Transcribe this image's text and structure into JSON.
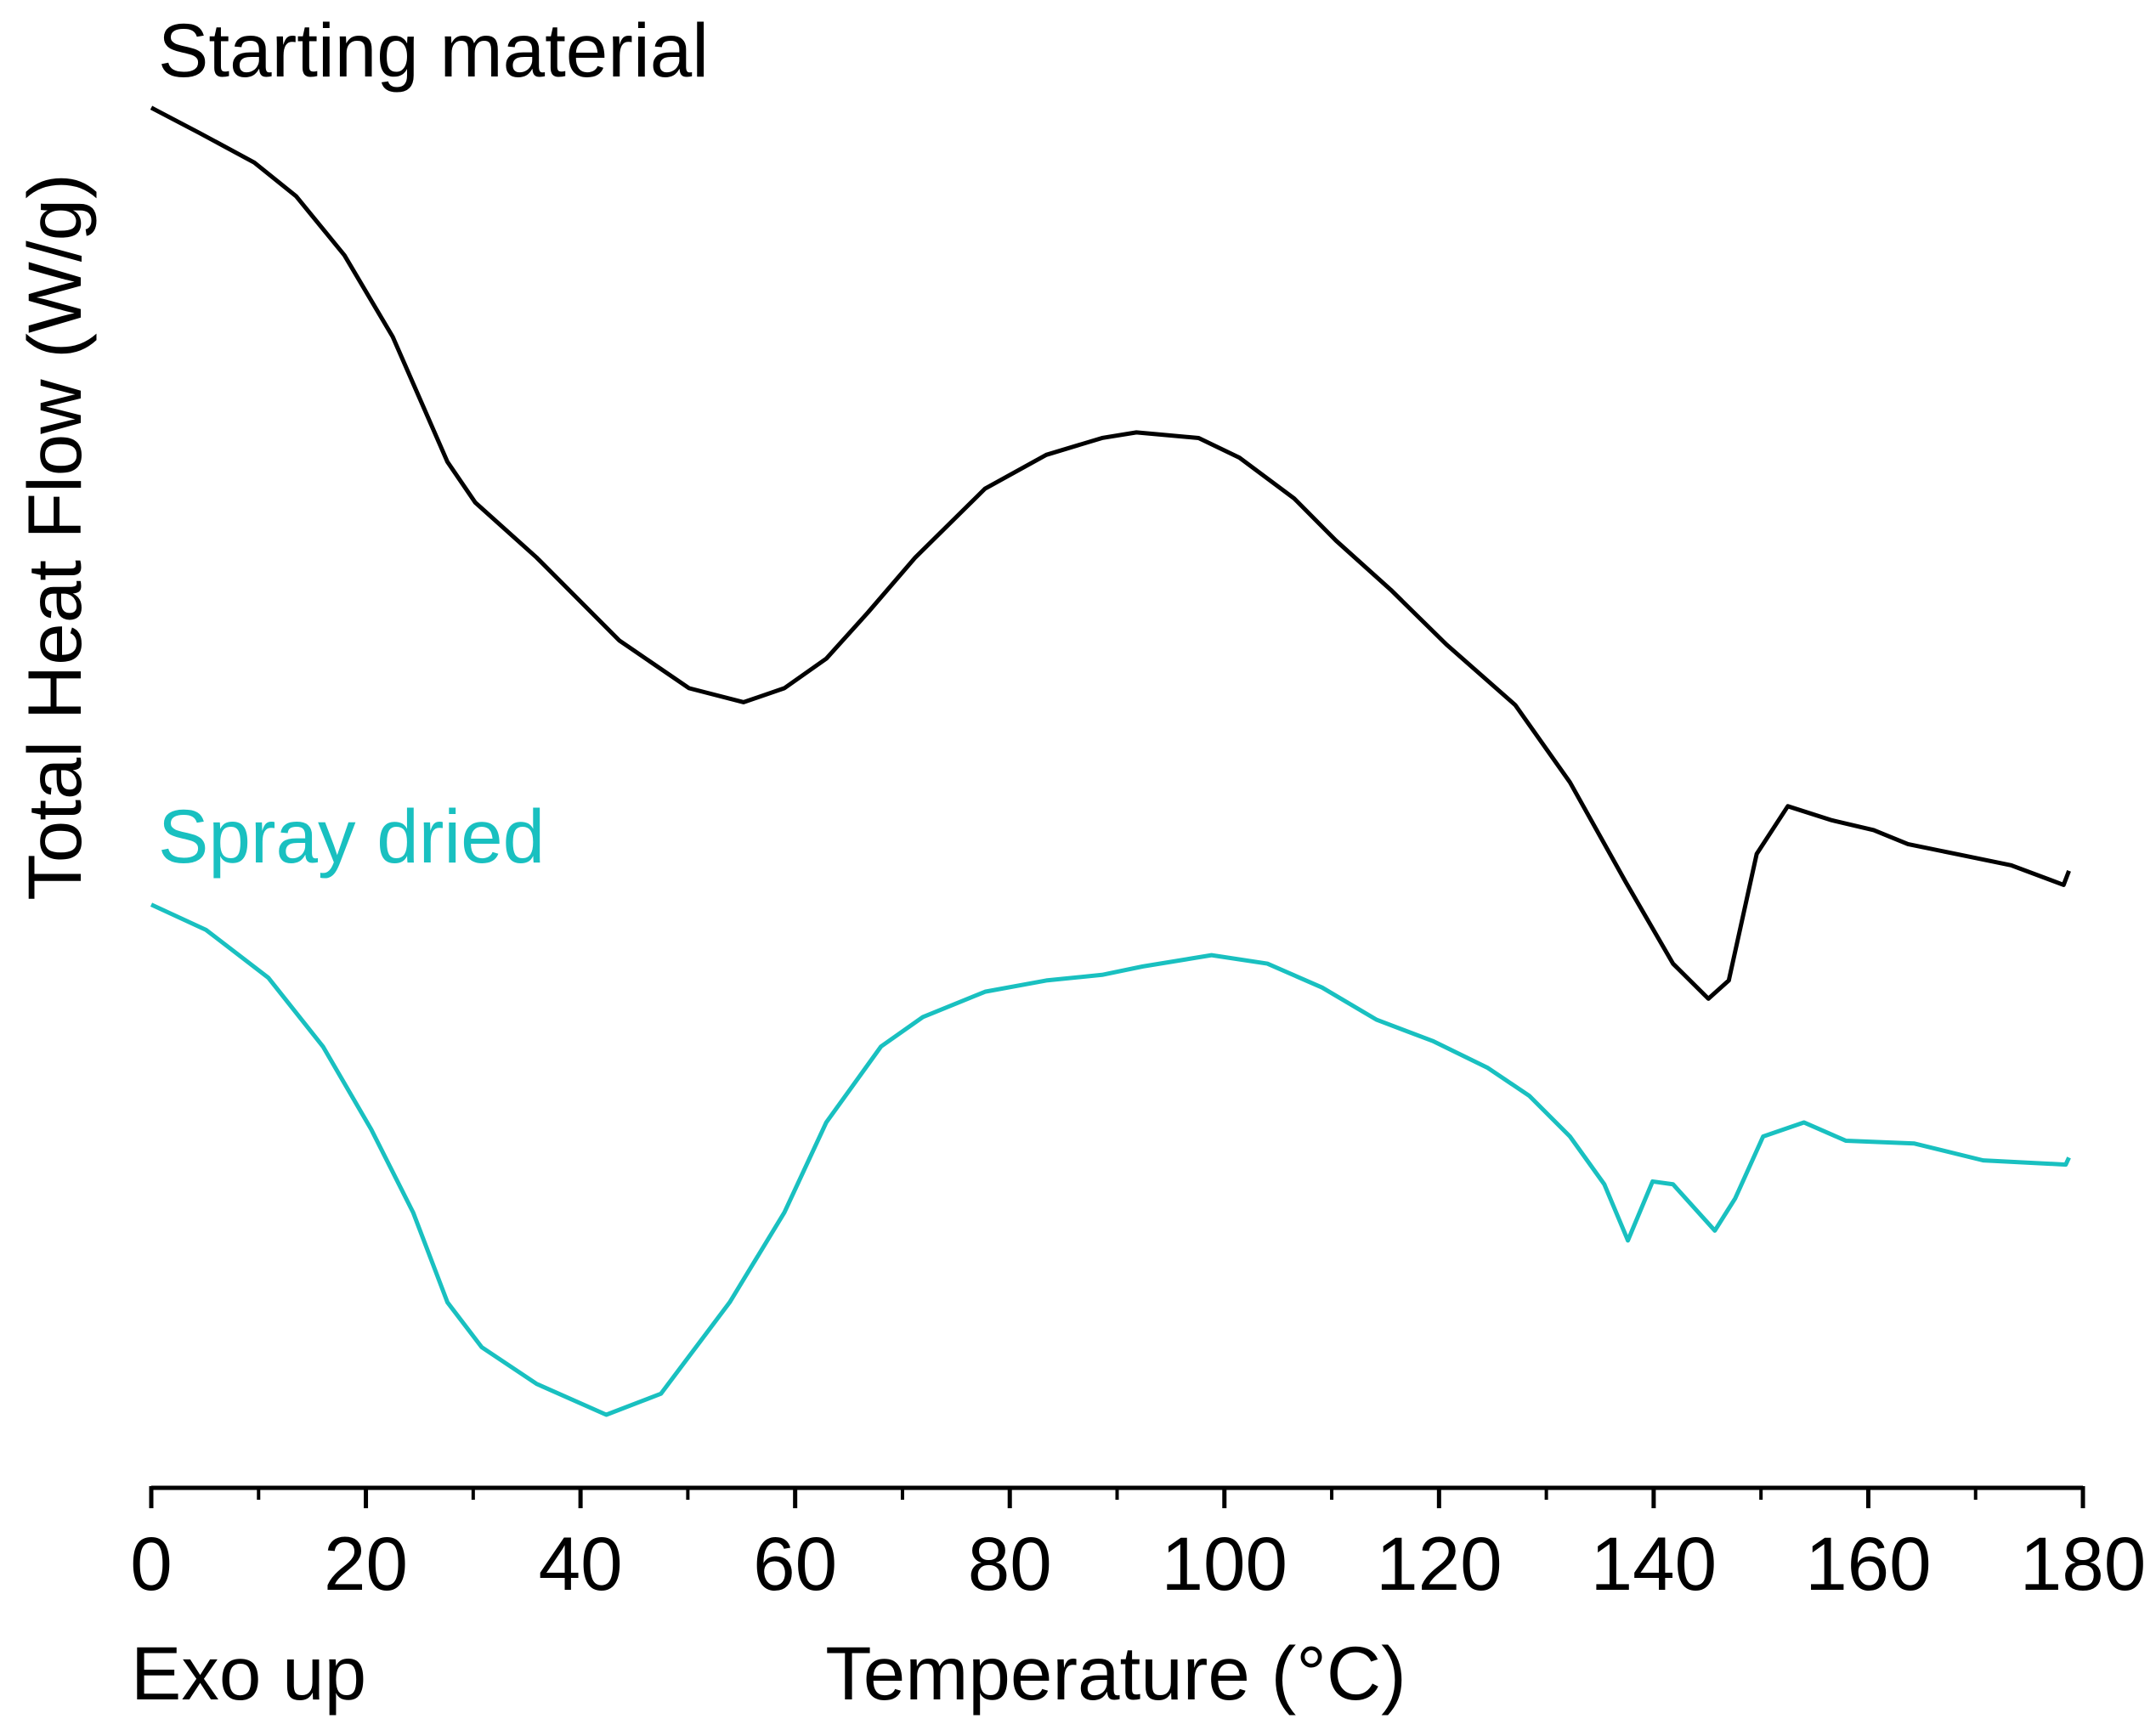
{
  "chart_data": {
    "type": "line",
    "x_label": "Temperature (°C)",
    "y_label": "Total Heat Flow (W/g)",
    "annotation": "Exo up",
    "xlim": [
      0,
      180
    ],
    "xticks": [
      0,
      20,
      40,
      60,
      80,
      100,
      120,
      140,
      160,
      180
    ],
    "xminor_ticks": [
      10,
      30,
      50,
      70,
      90,
      110,
      130,
      150,
      170
    ],
    "ylim": [
      0,
      100
    ],
    "grid": false,
    "series": [
      {
        "name": "Starting material",
        "color": "#000000",
        "x": [
          0,
          4.5,
          9.6,
          13.5,
          18.0,
          22.5,
          27.6,
          30.2,
          35.9,
          43.6,
          50.1,
          55.2,
          59.0,
          62.9,
          66.8,
          71.2,
          77.7,
          83.4,
          88.6,
          91.8,
          97.6,
          101.4,
          106.5,
          110.4,
          115.5,
          120.7,
          127.1,
          132.2,
          137.4,
          141.8,
          145.1,
          147.0,
          149.6,
          152.5,
          156.6,
          160.5,
          163.7,
          168.2,
          173.3,
          178.2,
          178.7
        ],
        "values": [
          98.2,
          96.4,
          94.3,
          91.9,
          87.7,
          81.9,
          73.0,
          70.1,
          66.2,
          60.3,
          56.9,
          55.9,
          56.9,
          59.0,
          62.3,
          66.2,
          71.1,
          73.5,
          74.7,
          75.1,
          74.7,
          73.3,
          70.4,
          67.4,
          63.9,
          60.0,
          55.7,
          50.2,
          43.1,
          37.3,
          34.8,
          36.1,
          45.1,
          48.5,
          47.5,
          46.8,
          45.8,
          45.1,
          44.3,
          42.9,
          43.9
        ]
      },
      {
        "name": "Spray dried",
        "color": "#19c0c0",
        "x": [
          0,
          5.1,
          10.9,
          16.0,
          20.5,
          24.4,
          27.6,
          30.8,
          35.9,
          42.4,
          47.5,
          53.9,
          59.0,
          62.9,
          68.0,
          71.9,
          77.7,
          83.4,
          88.6,
          92.4,
          98.8,
          104.0,
          109.1,
          114.2,
          119.4,
          124.5,
          128.4,
          132.2,
          135.4,
          137.6,
          139.9,
          141.8,
          145.7,
          147.6,
          150.2,
          154.0,
          157.9,
          164.3,
          170.7,
          178.4,
          178.7
        ],
        "values": [
          41.5,
          39.7,
          36.3,
          31.4,
          25.5,
          19.6,
          13.2,
          10.0,
          7.4,
          5.2,
          6.7,
          13.2,
          19.6,
          26.0,
          31.4,
          33.5,
          35.3,
          36.1,
          36.5,
          37.1,
          37.9,
          37.3,
          35.6,
          33.3,
          31.8,
          29.9,
          27.9,
          25.0,
          21.6,
          17.6,
          21.8,
          21.6,
          18.3,
          20.6,
          25.0,
          26.0,
          24.7,
          24.5,
          23.3,
          23.0,
          23.5
        ]
      }
    ]
  }
}
